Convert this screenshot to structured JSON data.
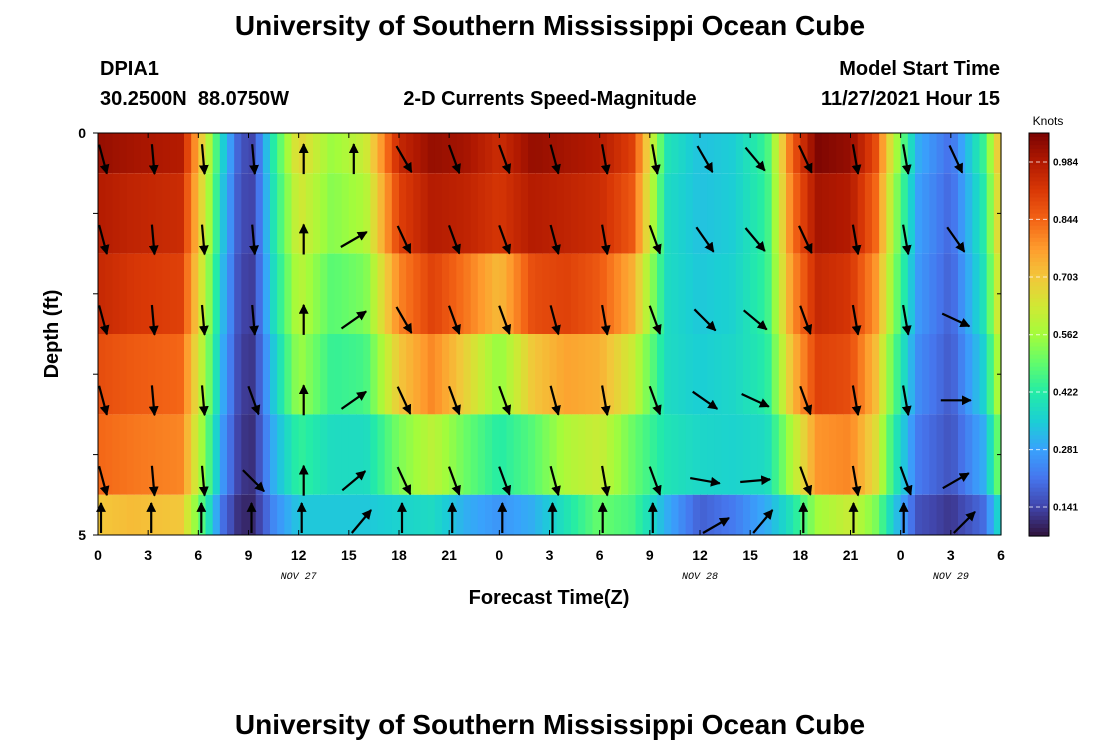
{
  "title": "University of Southern Mississippi Ocean Cube",
  "footer_title": "University of Southern Mississippi Ocean Cube",
  "station": {
    "id": "DPIA1",
    "coords": "30.2500N  88.0750W"
  },
  "subtitle": "2-D Currents Speed-Magnitude",
  "model_start": {
    "label": "Model Start Time",
    "value": "11/27/2021 Hour 15"
  },
  "colorbar": {
    "unit": "Knots",
    "ticks": [
      "0.984",
      "0.844",
      "0.703",
      "0.562",
      "0.422",
      "0.281",
      "0.141"
    ],
    "tick_values": [
      0.984,
      0.844,
      0.703,
      0.562,
      0.422,
      0.281,
      0.141
    ],
    "min": 0.07,
    "max": 1.055,
    "colors": [
      "#30123b",
      "#4145ab",
      "#4675ed",
      "#39a2fc",
      "#1bcfd4",
      "#24eca6",
      "#61fc6c",
      "#a4fc3b",
      "#d1e834",
      "#f3c63a",
      "#fe9b2d",
      "#f36315",
      "#d93806",
      "#b11901",
      "#7a0402"
    ]
  },
  "chart_data": {
    "type": "heatmap",
    "xlabel": "Forecast Time(Z)",
    "ylabel": "Depth (ft)",
    "x_tick_labels": [
      "0",
      "3",
      "6",
      "9",
      "12",
      "15",
      "18",
      "21",
      "0",
      "3",
      "6",
      "9",
      "12",
      "15",
      "18",
      "21",
      "0",
      "3",
      "6"
    ],
    "x_hours": [
      0,
      3,
      6,
      9,
      12,
      15,
      18,
      21,
      24,
      27,
      30,
      33,
      36,
      39,
      42,
      45,
      48,
      51,
      54
    ],
    "date_labels": [
      {
        "text": "NOV 27",
        "hour": 12
      },
      {
        "text": "NOV 28",
        "hour": 36
      },
      {
        "text": "NOV 29",
        "hour": 51
      }
    ],
    "y_tick_labels": [
      "0",
      "5"
    ],
    "ylim": [
      0,
      5
    ],
    "depth_layers": [
      0.0,
      1.0,
      2.0,
      3.0,
      4.0,
      5.0
    ],
    "speed_keyframes": {
      "hours": [
        0,
        2,
        5,
        6.5,
        7.5,
        8.5,
        9.3,
        10.5,
        12,
        14,
        16,
        18,
        20,
        22,
        24,
        26,
        28,
        30,
        32,
        34,
        36,
        38,
        40,
        41.5,
        43,
        45,
        46.5,
        47.5,
        49,
        51,
        53,
        54
      ],
      "layers": [
        [
          1.02,
          1.0,
          0.98,
          0.62,
          0.35,
          0.16,
          0.14,
          0.42,
          0.68,
          0.55,
          0.62,
          0.95,
          1.02,
          1.0,
          0.94,
          1.02,
          1.0,
          0.98,
          0.9,
          0.4,
          0.33,
          0.35,
          0.45,
          0.85,
          1.05,
          1.02,
          0.88,
          0.62,
          0.3,
          0.2,
          0.45,
          0.75
        ],
        [
          0.98,
          0.96,
          0.94,
          0.6,
          0.33,
          0.15,
          0.14,
          0.4,
          0.64,
          0.53,
          0.58,
          0.9,
          0.98,
          0.96,
          0.92,
          0.98,
          0.96,
          0.94,
          0.86,
          0.38,
          0.33,
          0.35,
          0.44,
          0.82,
          1.0,
          0.98,
          0.84,
          0.58,
          0.28,
          0.19,
          0.42,
          0.72
        ],
        [
          0.95,
          0.92,
          0.9,
          0.57,
          0.31,
          0.14,
          0.13,
          0.38,
          0.6,
          0.48,
          0.52,
          0.8,
          0.9,
          0.82,
          0.72,
          0.88,
          0.9,
          0.86,
          0.74,
          0.38,
          0.34,
          0.36,
          0.44,
          0.78,
          0.95,
          0.92,
          0.78,
          0.55,
          0.27,
          0.18,
          0.4,
          0.68
        ],
        [
          0.88,
          0.86,
          0.84,
          0.54,
          0.29,
          0.13,
          0.12,
          0.34,
          0.56,
          0.44,
          0.46,
          0.7,
          0.8,
          0.68,
          0.54,
          0.7,
          0.76,
          0.74,
          0.62,
          0.38,
          0.35,
          0.37,
          0.42,
          0.72,
          0.9,
          0.88,
          0.72,
          0.5,
          0.25,
          0.17,
          0.36,
          0.62
        ],
        [
          0.84,
          0.82,
          0.8,
          0.5,
          0.26,
          0.12,
          0.11,
          0.3,
          0.44,
          0.38,
          0.38,
          0.52,
          0.6,
          0.5,
          0.42,
          0.48,
          0.58,
          0.62,
          0.5,
          0.4,
          0.37,
          0.36,
          0.38,
          0.58,
          0.78,
          0.8,
          0.66,
          0.44,
          0.22,
          0.16,
          0.3,
          0.54
        ],
        [
          0.7,
          0.72,
          0.7,
          0.42,
          0.2,
          0.1,
          0.1,
          0.24,
          0.34,
          0.34,
          0.34,
          0.36,
          0.38,
          0.3,
          0.26,
          0.3,
          0.4,
          0.5,
          0.46,
          0.3,
          0.18,
          0.22,
          0.3,
          0.4,
          0.56,
          0.62,
          0.52,
          0.36,
          0.16,
          0.12,
          0.2,
          0.4
        ]
      ]
    },
    "vectors": {
      "hours": [
        0,
        3,
        6,
        9,
        12,
        15,
        18,
        21,
        24,
        27,
        30,
        33,
        36,
        39,
        42,
        45,
        48,
        51
      ],
      "depths": [
        0.25,
        1.25,
        2.25,
        3.25,
        4.25,
        5.0
      ],
      "directions_deg": [
        [
          165,
          175,
          175,
          175,
          0,
          0,
          150,
          160,
          160,
          165,
          170,
          170,
          150,
          140,
          155,
          170,
          170,
          155
        ],
        [
          165,
          175,
          175,
          175,
          0,
          60,
          155,
          160,
          160,
          165,
          170,
          160,
          145,
          140,
          155,
          170,
          170,
          145
        ],
        [
          165,
          175,
          175,
          175,
          0,
          55,
          150,
          160,
          160,
          165,
          170,
          160,
          135,
          130,
          160,
          170,
          170,
          115
        ],
        [
          165,
          175,
          175,
          160,
          0,
          55,
          155,
          160,
          160,
          165,
          170,
          160,
          125,
          115,
          160,
          170,
          170,
          90
        ],
        [
          165,
          175,
          175,
          135,
          0,
          50,
          155,
          160,
          160,
          165,
          170,
          160,
          100,
          85,
          160,
          170,
          160,
          60
        ],
        [
          0,
          0,
          0,
          0,
          0,
          40,
          0,
          0,
          0,
          0,
          0,
          0,
          60,
          40,
          0,
          0,
          0,
          45
        ]
      ]
    }
  }
}
